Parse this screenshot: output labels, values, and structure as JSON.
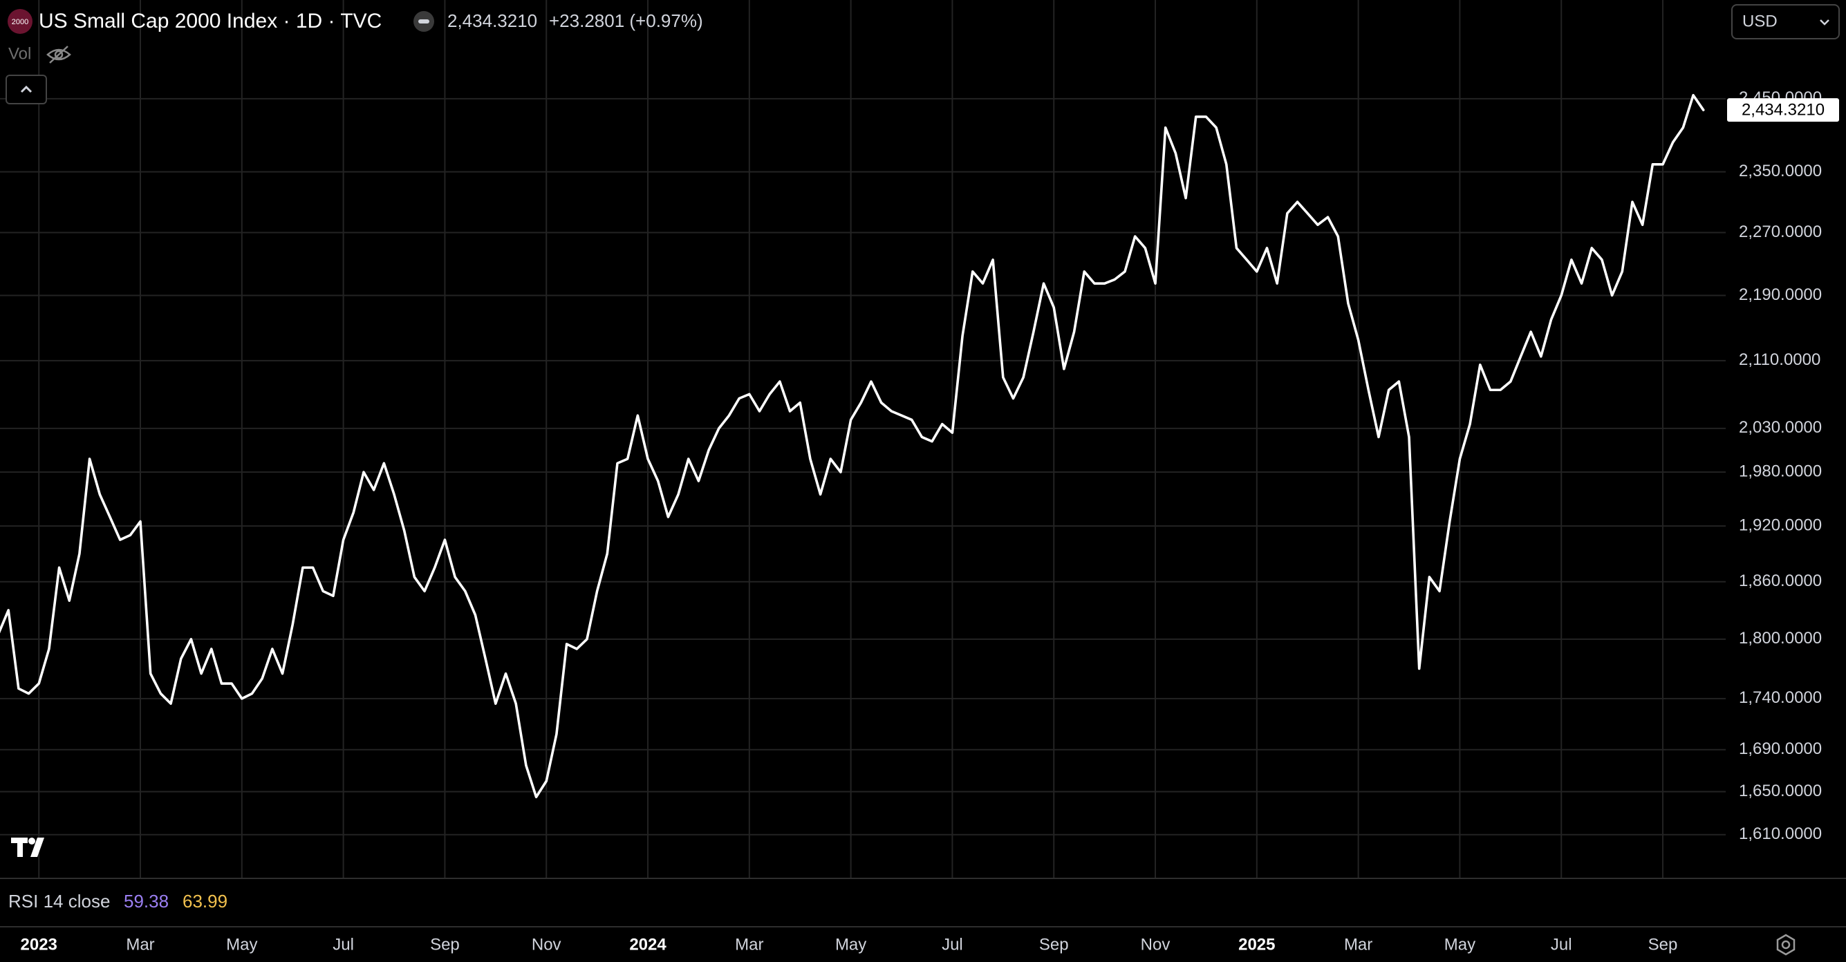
{
  "header": {
    "badge": "2000",
    "title": "US Small Cap 2000 Index · 1D · TVC",
    "price": "2,434.3210",
    "change": "+23.2801 (+0.97%)",
    "volume_label": "Vol",
    "currency": "USD"
  },
  "indicator": {
    "label": "RSI 14 close",
    "value_1": "59.38",
    "value_2": "63.99"
  },
  "chart_data": {
    "type": "line",
    "color": "#ffffff",
    "log_scale": true,
    "grid": true,
    "last_label": "2,434.3210",
    "categories": [
      null,
      null,
      null,
      null,
      "2023",
      null,
      null,
      null,
      null,
      null,
      null,
      null,
      null,
      null,
      "Mar",
      null,
      null,
      null,
      null,
      null,
      null,
      null,
      null,
      null,
      "May",
      null,
      null,
      null,
      null,
      null,
      null,
      null,
      null,
      null,
      "Jul",
      null,
      null,
      null,
      null,
      null,
      null,
      null,
      null,
      null,
      "Sep",
      null,
      null,
      null,
      null,
      null,
      null,
      null,
      null,
      null,
      "Nov",
      null,
      null,
      null,
      null,
      null,
      null,
      null,
      null,
      null,
      "2024",
      null,
      null,
      null,
      null,
      null,
      null,
      null,
      null,
      null,
      "Mar",
      null,
      null,
      null,
      null,
      null,
      null,
      null,
      null,
      null,
      "May",
      null,
      null,
      null,
      null,
      null,
      null,
      null,
      null,
      null,
      "Jul",
      null,
      null,
      null,
      null,
      null,
      null,
      null,
      null,
      null,
      "Sep",
      null,
      null,
      null,
      null,
      null,
      null,
      null,
      null,
      null,
      "Nov",
      null,
      null,
      null,
      null,
      null,
      null,
      null,
      null,
      null,
      "2025",
      null,
      null,
      null,
      null,
      null,
      null,
      null,
      null,
      null,
      "Mar",
      null,
      null,
      null,
      null,
      null,
      null,
      null,
      null,
      null,
      "May",
      null,
      null,
      null,
      null,
      null,
      null,
      null,
      null,
      null,
      "Jul",
      null,
      null,
      null,
      null,
      null,
      null,
      null,
      null,
      null,
      "Sep",
      null,
      null,
      null,
      null
    ],
    "values": [
      1805,
      1830,
      1750,
      1745,
      1755,
      1790,
      1875,
      1840,
      1890,
      1995,
      1955,
      1930,
      1905,
      1910,
      1925,
      1765,
      1745,
      1735,
      1780,
      1800,
      1765,
      1790,
      1755,
      1755,
      1740,
      1745,
      1760,
      1790,
      1765,
      1815,
      1875,
      1875,
      1850,
      1845,
      1905,
      1935,
      1980,
      1960,
      1990,
      1955,
      1915,
      1865,
      1850,
      1875,
      1905,
      1865,
      1850,
      1825,
      1780,
      1735,
      1765,
      1735,
      1675,
      1645,
      1660,
      1705,
      1795,
      1790,
      1800,
      1850,
      1890,
      1990,
      1995,
      2045,
      1995,
      1970,
      1930,
      1955,
      1995,
      1970,
      2005,
      2030,
      2045,
      2065,
      2070,
      2050,
      2070,
      2085,
      2050,
      2060,
      1995,
      1955,
      1995,
      1980,
      2040,
      2060,
      2085,
      2060,
      2050,
      2045,
      2040,
      2020,
      2015,
      2035,
      2025,
      2140,
      2220,
      2205,
      2235,
      2090,
      2065,
      2090,
      2145,
      2205,
      2175,
      2100,
      2145,
      2220,
      2205,
      2205,
      2210,
      2220,
      2265,
      2250,
      2205,
      2410,
      2375,
      2315,
      2425,
      2425,
      2410,
      2360,
      2250,
      2235,
      2220,
      2250,
      2205,
      2295,
      2310,
      2295,
      2280,
      2290,
      2265,
      2180,
      2135,
      2075,
      2020,
      2075,
      2085,
      2020,
      1770,
      1865,
      1850,
      1925,
      1995,
      2035,
      2105,
      2075,
      2075,
      2085,
      2115,
      2145,
      2115,
      2160,
      2190,
      2235,
      2205,
      2250,
      2235,
      2190,
      2220,
      2310,
      2280,
      2360,
      2360,
      2390,
      2410,
      2455,
      2434.321
    ],
    "ylim": [
      1571,
      2592
    ],
    "yticks": [
      {
        "value": 1610,
        "label": "1,610.0000"
      },
      {
        "value": 1650,
        "label": "1,650.0000"
      },
      {
        "value": 1690,
        "label": "1,690.0000"
      },
      {
        "value": 1740,
        "label": "1,740.0000"
      },
      {
        "value": 1800,
        "label": "1,800.0000"
      },
      {
        "value": 1860,
        "label": "1,860.0000"
      },
      {
        "value": 1920,
        "label": "1,920.0000"
      },
      {
        "value": 1980,
        "label": "1,980.0000"
      },
      {
        "value": 2030,
        "label": "2,030.0000"
      },
      {
        "value": 2110,
        "label": "2,110.0000"
      },
      {
        "value": 2190,
        "label": "2,190.0000"
      },
      {
        "value": 2270,
        "label": "2,270.0000"
      },
      {
        "value": 2350,
        "label": "2,350.0000"
      },
      {
        "value": 2450,
        "label": "2,450.0000"
      }
    ]
  }
}
